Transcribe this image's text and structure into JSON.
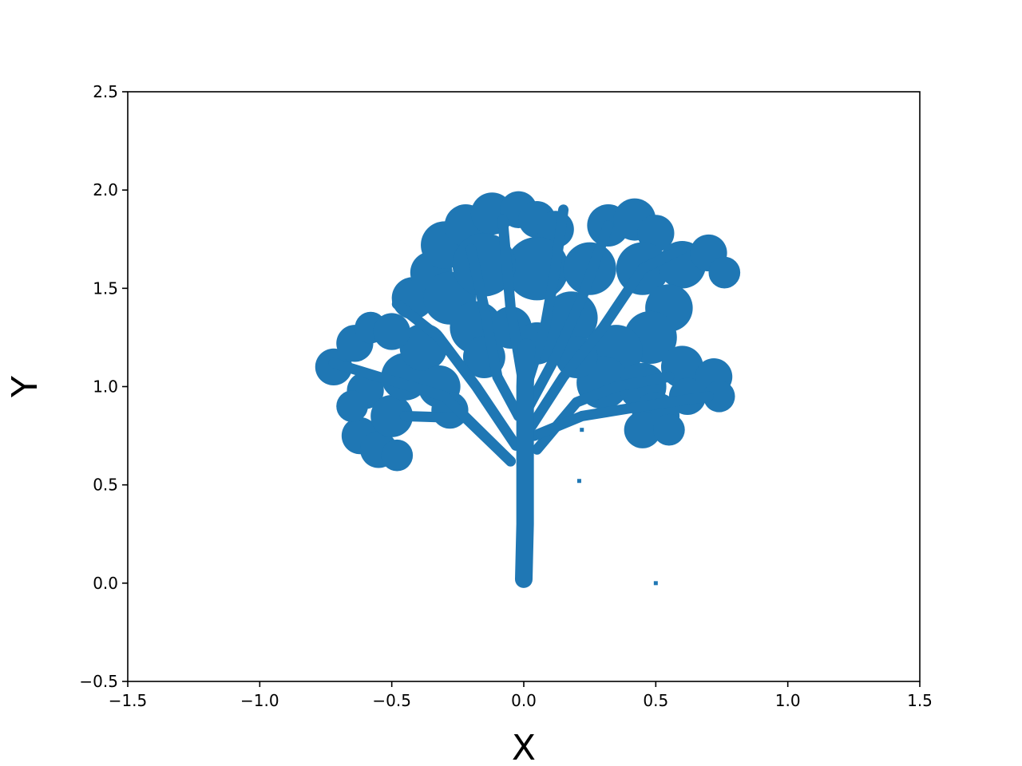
{
  "chart_data": {
    "type": "scatter",
    "title": "",
    "xlabel": "X",
    "ylabel": "Y",
    "xlim": [
      -1.5,
      1.5
    ],
    "ylim": [
      -0.5,
      2.5
    ],
    "xticks": [
      -1.5,
      -1.0,
      -0.5,
      0.0,
      0.5,
      1.0,
      1.5
    ],
    "yticks": [
      -0.5,
      0.0,
      0.5,
      1.0,
      1.5,
      2.0,
      2.5
    ],
    "xtick_labels": [
      "−1.5",
      "−1.0",
      "−0.5",
      "0.0",
      "0.5",
      "1.0",
      "1.5"
    ],
    "ytick_labels": [
      "−0.5",
      "0.0",
      "0.5",
      "1.0",
      "1.5",
      "2.0",
      "2.5"
    ],
    "grid": false,
    "legend": "none",
    "color": "#1f77b4",
    "series": [
      {
        "trunk": [
          [
            0.0,
            0.02
          ],
          [
            0.005,
            0.3
          ],
          [
            0.005,
            0.6
          ],
          [
            0.005,
            1.0
          ],
          [
            0.01,
            1.2
          ]
        ],
        "branches": [
          [
            [
              -0.05,
              0.62
            ],
            [
              -0.22,
              0.84
            ],
            [
              -0.45,
              0.85
            ]
          ],
          [
            [
              -0.05,
              0.62
            ],
            [
              -0.3,
              0.95
            ],
            [
              -0.55,
              1.05
            ],
            [
              -0.72,
              1.12
            ]
          ],
          [
            [
              -0.03,
              0.7
            ],
            [
              -0.18,
              1.0
            ],
            [
              -0.32,
              1.25
            ],
            [
              -0.48,
              1.42
            ]
          ],
          [
            [
              -0.02,
              0.85
            ],
            [
              -0.1,
              1.05
            ],
            [
              -0.15,
              1.4
            ],
            [
              -0.2,
              1.7
            ]
          ],
          [
            [
              0.0,
              1.0
            ],
            [
              -0.05,
              1.4
            ],
            [
              -0.08,
              1.85
            ]
          ],
          [
            [
              0.03,
              0.8
            ],
            [
              0.15,
              1.05
            ],
            [
              0.3,
              1.3
            ],
            [
              0.45,
              1.6
            ],
            [
              0.6,
              1.7
            ]
          ],
          [
            [
              0.05,
              0.68
            ],
            [
              0.2,
              0.92
            ],
            [
              0.35,
              1.0
            ],
            [
              0.55,
              1.05
            ]
          ],
          [
            [
              0.04,
              0.75
            ],
            [
              0.22,
              0.85
            ],
            [
              0.45,
              0.9
            ],
            [
              0.7,
              0.95
            ]
          ],
          [
            [
              0.02,
              0.9
            ],
            [
              0.12,
              1.15
            ],
            [
              0.22,
              1.45
            ],
            [
              0.32,
              1.82
            ]
          ],
          [
            [
              0.01,
              1.0
            ],
            [
              0.08,
              1.3
            ],
            [
              0.12,
              1.6
            ],
            [
              0.15,
              1.9
            ]
          ]
        ],
        "canopy": [
          [
            -0.72,
            1.1,
            0.07
          ],
          [
            -0.64,
            1.22,
            0.07
          ],
          [
            -0.58,
            1.3,
            0.06
          ],
          [
            -0.6,
            0.98,
            0.07
          ],
          [
            -0.62,
            0.75,
            0.07
          ],
          [
            -0.55,
            0.68,
            0.07
          ],
          [
            -0.48,
            0.65,
            0.06
          ],
          [
            -0.5,
            0.85,
            0.08
          ],
          [
            -0.45,
            1.05,
            0.09
          ],
          [
            -0.38,
            1.2,
            0.09
          ],
          [
            -0.42,
            1.45,
            0.08
          ],
          [
            -0.35,
            1.58,
            0.08
          ],
          [
            -0.28,
            1.45,
            0.1
          ],
          [
            -0.3,
            1.72,
            0.09
          ],
          [
            -0.22,
            1.82,
            0.08
          ],
          [
            -0.12,
            1.88,
            0.08
          ],
          [
            -0.02,
            1.9,
            0.07
          ],
          [
            0.05,
            1.85,
            0.07
          ],
          [
            0.12,
            1.8,
            0.07
          ],
          [
            0.05,
            1.6,
            0.12
          ],
          [
            -0.15,
            1.62,
            0.12
          ],
          [
            -0.18,
            1.3,
            0.1
          ],
          [
            -0.05,
            1.3,
            0.08
          ],
          [
            0.05,
            1.22,
            0.08
          ],
          [
            0.18,
            1.35,
            0.1
          ],
          [
            0.25,
            1.6,
            0.1
          ],
          [
            0.32,
            1.82,
            0.08
          ],
          [
            0.42,
            1.85,
            0.08
          ],
          [
            0.5,
            1.78,
            0.07
          ],
          [
            0.45,
            1.6,
            0.1
          ],
          [
            0.6,
            1.62,
            0.09
          ],
          [
            0.7,
            1.68,
            0.07
          ],
          [
            0.76,
            1.58,
            0.06
          ],
          [
            0.55,
            1.4,
            0.09
          ],
          [
            0.48,
            1.25,
            0.1
          ],
          [
            0.35,
            1.18,
            0.1
          ],
          [
            0.3,
            1.02,
            0.1
          ],
          [
            0.45,
            1.0,
            0.09
          ],
          [
            0.6,
            1.1,
            0.08
          ],
          [
            0.72,
            1.05,
            0.07
          ],
          [
            0.74,
            0.95,
            0.06
          ],
          [
            0.5,
            0.85,
            0.09
          ],
          [
            0.45,
            0.78,
            0.07
          ],
          [
            0.55,
            0.78,
            0.06
          ],
          [
            -0.32,
            1.0,
            0.08
          ],
          [
            -0.28,
            0.88,
            0.07
          ],
          [
            -0.15,
            1.15,
            0.08
          ],
          [
            0.2,
            1.15,
            0.08
          ],
          [
            -0.65,
            0.9,
            0.06
          ],
          [
            -0.5,
            1.28,
            0.07
          ],
          [
            0.62,
            0.95,
            0.07
          ]
        ],
        "outliers": [
          [
            0.22,
            0.78
          ],
          [
            0.21,
            0.52
          ],
          [
            0.5,
            0.0
          ]
        ]
      }
    ]
  }
}
